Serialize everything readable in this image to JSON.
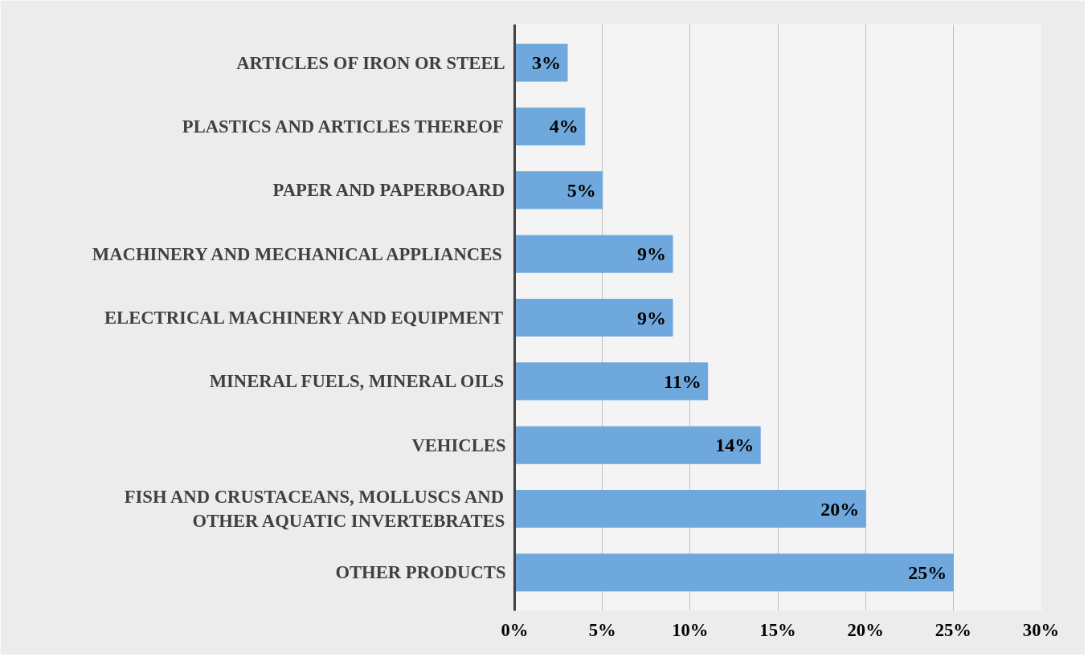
{
  "chart_data": {
    "type": "bar",
    "orientation": "horizontal",
    "categories": [
      "ARTICLES OF IRON OR STEEL",
      "PLASTICS AND ARTICLES THEREOF",
      "PAPER AND PAPERBOARD",
      "MACHINERY AND MECHANICAL APPLIANCES",
      "ELECTRICAL MACHINERY AND EQUIPMENT",
      "MINERAL FUELS, MINERAL OILS",
      "VEHICLES",
      "FISH AND CRUSTACEANS, MOLLUSCS AND\nOTHER AQUATIC INVERTEBRATES",
      "OTHER PRODUCTS"
    ],
    "values": [
      3,
      4,
      5,
      9,
      9,
      11,
      14,
      20,
      25
    ],
    "value_labels": [
      "3%",
      "4%",
      "5%",
      "9%",
      "9%",
      "11%",
      "14%",
      "20%",
      "25%"
    ],
    "color": "#6fa8dc",
    "xlim": [
      0,
      30
    ],
    "xticks": [
      {
        "value": 0,
        "label": "0%"
      },
      {
        "value": 5,
        "label": "5%"
      },
      {
        "value": 10,
        "label": "10%"
      },
      {
        "value": 15,
        "label": "15%"
      },
      {
        "value": 20,
        "label": "20%"
      },
      {
        "value": 25,
        "label": "25%"
      },
      {
        "value": 30,
        "label": "30%"
      }
    ],
    "grid": "x"
  }
}
